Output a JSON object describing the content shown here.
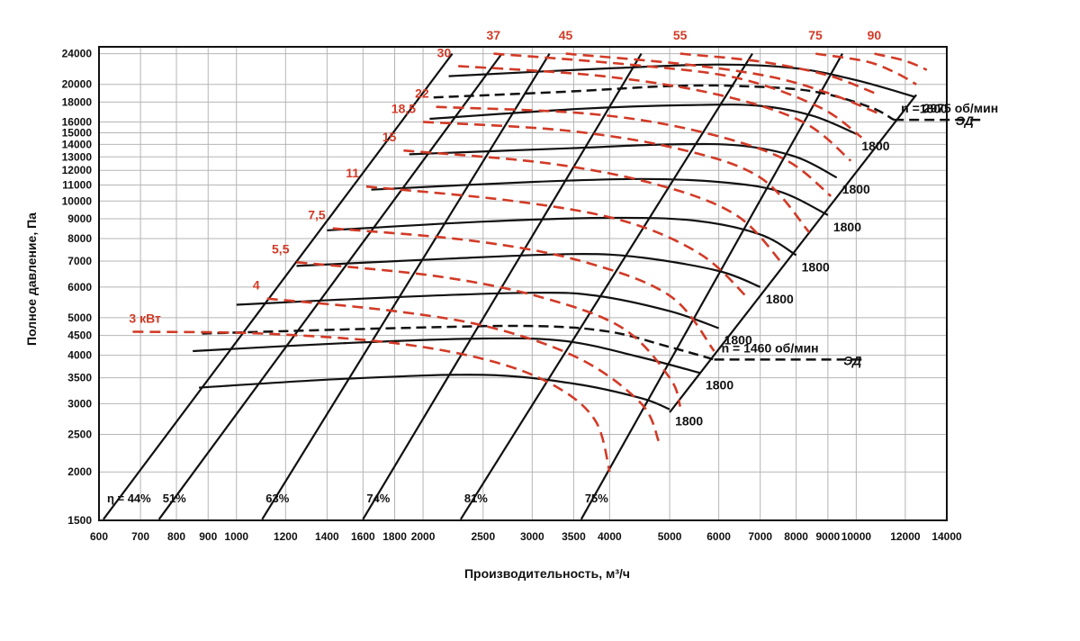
{
  "chart_data": {
    "type": "line",
    "title": "",
    "xlabel": "Производительность, м³/ч",
    "ylabel": "Полное давление, Па",
    "x_scale": "log",
    "y_scale": "log",
    "xlim": [
      600,
      14000
    ],
    "ylim": [
      1500,
      25000
    ],
    "grid": true,
    "colors": {
      "grid": "#b5b5b5",
      "fan_curve": "#111111",
      "power_curve": "#d23a26"
    },
    "x_ticks": [
      {
        "value": 600,
        "label": "600"
      },
      {
        "value": 700,
        "label": "700"
      },
      {
        "value": 800,
        "label": "800"
      },
      {
        "value": 900,
        "label": "900"
      },
      {
        "value": 1000,
        "label": "1000"
      },
      {
        "value": 1200,
        "label": "1200"
      },
      {
        "value": 1400,
        "label": "1400"
      },
      {
        "value": 1600,
        "label": "1600"
      },
      {
        "value": 1800,
        "label": "1800"
      },
      {
        "value": 2000,
        "label": "2000"
      },
      {
        "value": 2500,
        "label": "2500"
      },
      {
        "value": 3000,
        "label": "3000"
      },
      {
        "value": 3500,
        "label": "3500"
      },
      {
        "value": 4000,
        "label": "4000"
      },
      {
        "value": 5000,
        "label": "5000"
      },
      {
        "value": 6000,
        "label": "6000"
      },
      {
        "value": 7000,
        "label": "7000"
      },
      {
        "value": 8000,
        "label": "8000"
      },
      {
        "value": 9000,
        "label": "9000"
      },
      {
        "value": 10000,
        "label": "10000"
      },
      {
        "value": 12000,
        "label": "12000"
      },
      {
        "value": 14000,
        "label": "14000"
      }
    ],
    "y_ticks": [
      {
        "value": 1500,
        "label": "1500"
      },
      {
        "value": 2000,
        "label": "2000"
      },
      {
        "value": 2500,
        "label": "2500"
      },
      {
        "value": 3000,
        "label": "3000"
      },
      {
        "value": 3500,
        "label": "3500"
      },
      {
        "value": 4000,
        "label": "4000"
      },
      {
        "value": 4500,
        "label": "4500"
      },
      {
        "value": 5000,
        "label": "5000"
      },
      {
        "value": 6000,
        "label": "6000"
      },
      {
        "value": 7000,
        "label": "7000"
      },
      {
        "value": 8000,
        "label": "8000"
      },
      {
        "value": 9000,
        "label": "9000"
      },
      {
        "value": 10000,
        "label": "10000"
      },
      {
        "value": 11000,
        "label": "11000"
      },
      {
        "value": 12000,
        "label": "12000"
      },
      {
        "value": 13000,
        "label": "13000"
      },
      {
        "value": 14000,
        "label": "14000"
      },
      {
        "value": 15000,
        "label": "15000"
      },
      {
        "value": 16000,
        "label": "16000"
      },
      {
        "value": 18000,
        "label": "18000"
      },
      {
        "value": 20000,
        "label": "20000"
      },
      {
        "value": 24000,
        "label": "24000"
      }
    ],
    "fan_curves": [
      {
        "label": "1800",
        "points": [
          [
            870,
            3300
          ],
          [
            1500,
            3480
          ],
          [
            2500,
            3560
          ],
          [
            3500,
            3380
          ],
          [
            4500,
            3100
          ],
          [
            5000,
            2900
          ]
        ]
      },
      {
        "label": "1800",
        "points": [
          [
            850,
            4100
          ],
          [
            1500,
            4300
          ],
          [
            2500,
            4420
          ],
          [
            3400,
            4350
          ],
          [
            4500,
            3950
          ],
          [
            5600,
            3600
          ]
        ]
      },
      {
        "label": "1800",
        "points": [
          [
            1000,
            5400
          ],
          [
            1800,
            5650
          ],
          [
            3000,
            5800
          ],
          [
            3800,
            5700
          ],
          [
            5000,
            5200
          ],
          [
            6000,
            4700
          ]
        ]
      },
      {
        "label": "1800",
        "points": [
          [
            1250,
            6800
          ],
          [
            2200,
            7100
          ],
          [
            3500,
            7300
          ],
          [
            4500,
            7150
          ],
          [
            6000,
            6600
          ],
          [
            7000,
            6000
          ]
        ]
      },
      {
        "label": "1800",
        "points": [
          [
            1400,
            8400
          ],
          [
            2500,
            8850
          ],
          [
            4000,
            9050
          ],
          [
            5500,
            8900
          ],
          [
            7000,
            8200
          ],
          [
            8000,
            7250
          ]
        ]
      },
      {
        "label": "1800",
        "points": [
          [
            1650,
            10700
          ],
          [
            3000,
            11200
          ],
          [
            4500,
            11400
          ],
          [
            6000,
            11200
          ],
          [
            7500,
            10600
          ],
          [
            9000,
            9200
          ]
        ]
      },
      {
        "label": "1800",
        "points": [
          [
            1900,
            13200
          ],
          [
            3500,
            13700
          ],
          [
            5000,
            14000
          ],
          [
            6500,
            13900
          ],
          [
            8000,
            13000
          ],
          [
            9300,
            11500
          ]
        ]
      },
      {
        "label": "1800",
        "points": [
          [
            2050,
            16300
          ],
          [
            3600,
            17300
          ],
          [
            5500,
            17700
          ],
          [
            7000,
            17600
          ],
          [
            8500,
            16600
          ],
          [
            10000,
            14900
          ]
        ]
      },
      {
        "label": "1800",
        "points": [
          [
            2200,
            21000
          ],
          [
            4000,
            22000
          ],
          [
            6000,
            22500
          ],
          [
            8000,
            22000
          ],
          [
            10000,
            20500
          ],
          [
            12400,
            18600
          ]
        ]
      }
    ],
    "speed_curves": [
      {
        "label": "n = 1460 об/мин",
        "motor_label": "ЭД",
        "points": [
          [
            880,
            4550
          ],
          [
            1800,
            4700
          ],
          [
            3000,
            4760
          ],
          [
            4000,
            4600
          ],
          [
            5000,
            4200
          ],
          [
            5900,
            3900
          ]
        ],
        "extension": [
          [
            5900,
            3900
          ],
          [
            10200,
            3900
          ]
        ]
      },
      {
        "label": "n = 2975 об/мин",
        "motor_label": "ЭД",
        "points": [
          [
            2080,
            18500
          ],
          [
            3500,
            19200
          ],
          [
            5000,
            19800
          ],
          [
            6500,
            19800
          ],
          [
            8500,
            19200
          ],
          [
            10500,
            17500
          ],
          [
            11500,
            16200
          ]
        ],
        "extension": [
          [
            11500,
            16200
          ],
          [
            16000,
            16200
          ]
        ]
      }
    ],
    "efficiency_lines": [
      {
        "label": "η = 44%",
        "points": [
          [
            610,
            1510
          ],
          [
            2230,
            24000
          ]
        ]
      },
      {
        "label": "51%",
        "points": [
          [
            750,
            1510
          ],
          [
            2680,
            24000
          ]
        ]
      },
      {
        "label": "63%",
        "points": [
          [
            1100,
            1510
          ],
          [
            3200,
            24000
          ]
        ]
      },
      {
        "label": "74%",
        "points": [
          [
            1600,
            1510
          ],
          [
            4500,
            24000
          ]
        ]
      },
      {
        "label": "81%",
        "points": [
          [
            2300,
            1510
          ],
          [
            6800,
            24000
          ]
        ]
      },
      {
        "label": "75%",
        "points": [
          [
            3600,
            1510
          ],
          [
            9500,
            24000
          ]
        ]
      },
      {
        "label": "",
        "points": [
          [
            5000,
            2850
          ],
          [
            12500,
            18800
          ]
        ]
      }
    ],
    "power_curves": [
      {
        "label": "3 кВт",
        "points": [
          [
            680,
            4600
          ],
          [
            1100,
            4550
          ],
          [
            1800,
            4300
          ],
          [
            2600,
            3850
          ],
          [
            3300,
            3300
          ],
          [
            3800,
            2700
          ],
          [
            4000,
            2000
          ]
        ]
      },
      {
        "label": "4",
        "points": [
          [
            1120,
            5600
          ],
          [
            1800,
            5200
          ],
          [
            2600,
            4700
          ],
          [
            3600,
            3900
          ],
          [
            4500,
            3000
          ],
          [
            4800,
            2400
          ]
        ]
      },
      {
        "label": "5,5",
        "points": [
          [
            1250,
            6950
          ],
          [
            2100,
            6400
          ],
          [
            3100,
            5650
          ],
          [
            4200,
            4700
          ],
          [
            5000,
            3500
          ],
          [
            5200,
            2950
          ]
        ]
      },
      {
        "label": "7,5",
        "points": [
          [
            1430,
            8500
          ],
          [
            2400,
            7900
          ],
          [
            3600,
            7000
          ],
          [
            5000,
            5700
          ],
          [
            5900,
            4100
          ]
        ]
      },
      {
        "label": "11",
        "points": [
          [
            1620,
            10900
          ],
          [
            2800,
            10000
          ],
          [
            4200,
            8900
          ],
          [
            5600,
            7300
          ],
          [
            6700,
            5600
          ]
        ]
      },
      {
        "label": "15",
        "points": [
          [
            1860,
            13500
          ],
          [
            3200,
            12500
          ],
          [
            4800,
            11000
          ],
          [
            6400,
            9200
          ],
          [
            7600,
            6900
          ]
        ]
      },
      {
        "label": "18,5",
        "points": [
          [
            2000,
            16000
          ],
          [
            3400,
            15200
          ],
          [
            5200,
            13600
          ],
          [
            7000,
            11500
          ],
          [
            8400,
            8300
          ]
        ]
      },
      {
        "label": "22",
        "points": [
          [
            2100,
            17500
          ],
          [
            3700,
            16800
          ],
          [
            5500,
            15200
          ],
          [
            7600,
            12900
          ],
          [
            9100,
            10300
          ]
        ]
      },
      {
        "label": "30",
        "points": [
          [
            2280,
            22300
          ],
          [
            3900,
            21000
          ],
          [
            6000,
            18800
          ],
          [
            8200,
            16000
          ],
          [
            9800,
            12700
          ]
        ]
      },
      {
        "label": "37",
        "points": [
          [
            2600,
            24000
          ],
          [
            4300,
            22500
          ],
          [
            6400,
            20800
          ],
          [
            8700,
            17500
          ],
          [
            10200,
            14600
          ]
        ]
      },
      {
        "label": "45",
        "points": [
          [
            3400,
            24000
          ],
          [
            5200,
            22600
          ],
          [
            7200,
            21000
          ],
          [
            9000,
            19000
          ],
          [
            10800,
            16900
          ]
        ]
      },
      {
        "label": "55",
        "points": [
          [
            5200,
            24000
          ],
          [
            7000,
            22900
          ],
          [
            9000,
            21100
          ],
          [
            10700,
            19000
          ]
        ]
      },
      {
        "label": "75",
        "points": [
          [
            8600,
            24000
          ],
          [
            10400,
            22900
          ],
          [
            11600,
            21400
          ],
          [
            12500,
            20000
          ]
        ]
      },
      {
        "label": "90",
        "points": [
          [
            10700,
            24000
          ],
          [
            12000,
            23000
          ],
          [
            13000,
            21800
          ]
        ]
      }
    ],
    "annotations": {
      "speed_low": "n = 1460 об/мин",
      "speed_high": "n = 2975 об/мин",
      "motor": "ЭД"
    }
  }
}
